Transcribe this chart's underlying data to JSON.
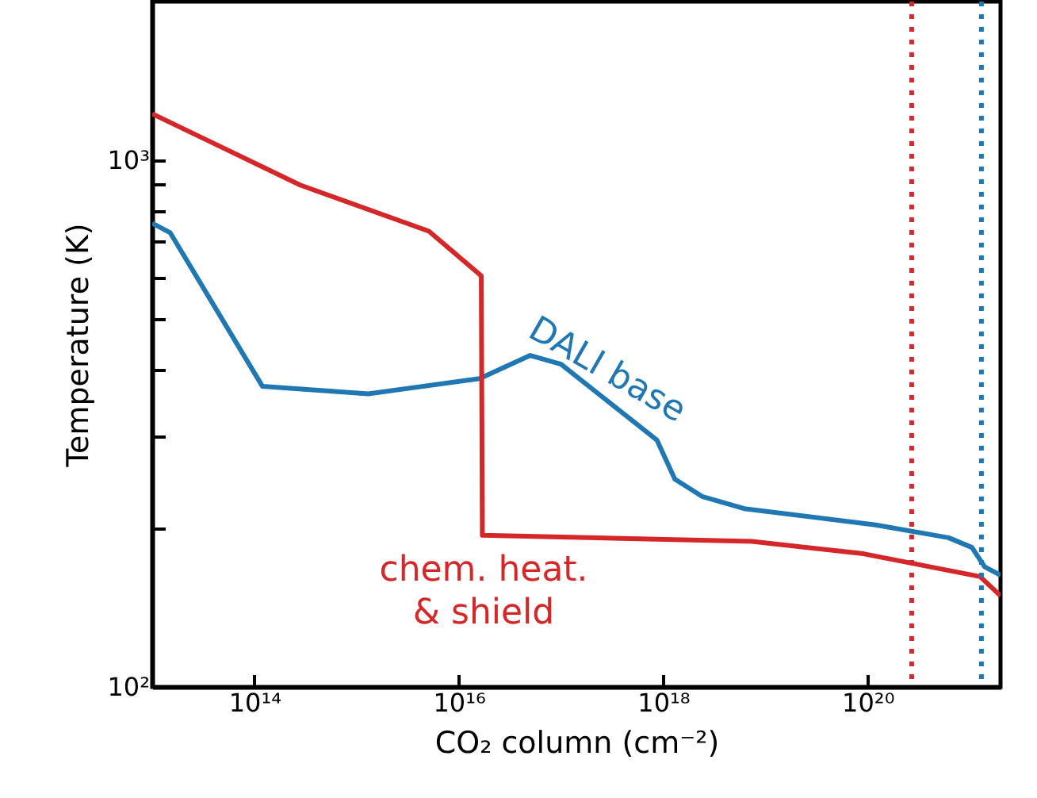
{
  "chart_data": {
    "type": "line",
    "xlabel": "CO₂ column (cm⁻²)",
    "ylabel": "Temperature (K)",
    "log": "xy",
    "legend": false,
    "grid": false,
    "xlim": [
      10000000000000.0,
      2e+21
    ],
    "xticks": [
      {
        "value": 100000000000000.0,
        "label": "10¹⁴"
      },
      {
        "value": 1e+16,
        "label": "10¹⁶"
      },
      {
        "value": 1e+18,
        "label": "10¹⁸"
      },
      {
        "value": 1e+20,
        "label": "10²⁰"
      }
    ],
    "ylim": [
      100,
      2000
    ],
    "yticks": [
      {
        "value": 100,
        "label": "10²"
      },
      {
        "value": 200,
        "label": null
      },
      {
        "value": 300,
        "label": null
      },
      {
        "value": 400,
        "label": null
      },
      {
        "value": 500,
        "label": null
      },
      {
        "value": 600,
        "label": null
      },
      {
        "value": 700,
        "label": null
      },
      {
        "value": 800,
        "label": null
      },
      {
        "value": 900,
        "label": null
      },
      {
        "value": 1000,
        "label": "10³"
      }
    ],
    "series": [
      {
        "name": "DALI base",
        "color": "#1f77b4",
        "x": [
          10000000000000.0,
          15000000000000.0,
          120000000000000.0,
          1300000000000000.0,
          1.6e+16,
          5e+16,
          1e+17,
          8.7e+17,
          1.3e+18,
          2.4e+18,
          6.2e+18,
          1.2e+20,
          6.2e+20,
          1.05e+21,
          1.4e+21,
          2e+21
        ],
        "values": [
          759,
          728,
          372,
          360,
          385,
          426,
          410,
          294,
          248,
          230,
          218,
          203,
          192,
          184,
          169,
          163
        ]
      },
      {
        "name": "chem. heat.\n& shield",
        "color": "#d62728",
        "x": [
          10000000000000.0,
          280000000000000.0,
          5100000000000000.0,
          1.66e+16,
          1.7e+16,
          7.4e+18,
          9.1e+19,
          1.26e+21,
          2e+21
        ],
        "values": [
          1225,
          897,
          733,
          603,
          194,
          189,
          179,
          162,
          149
        ]
      }
    ],
    "ref_lines": [
      {
        "axis": "x",
        "value": 2.7e+20,
        "color": "#d62728",
        "line_style": "dotted"
      },
      {
        "axis": "x",
        "value": 1.3e+21,
        "color": "#1f77b4",
        "line_style": "dotted"
      }
    ]
  }
}
